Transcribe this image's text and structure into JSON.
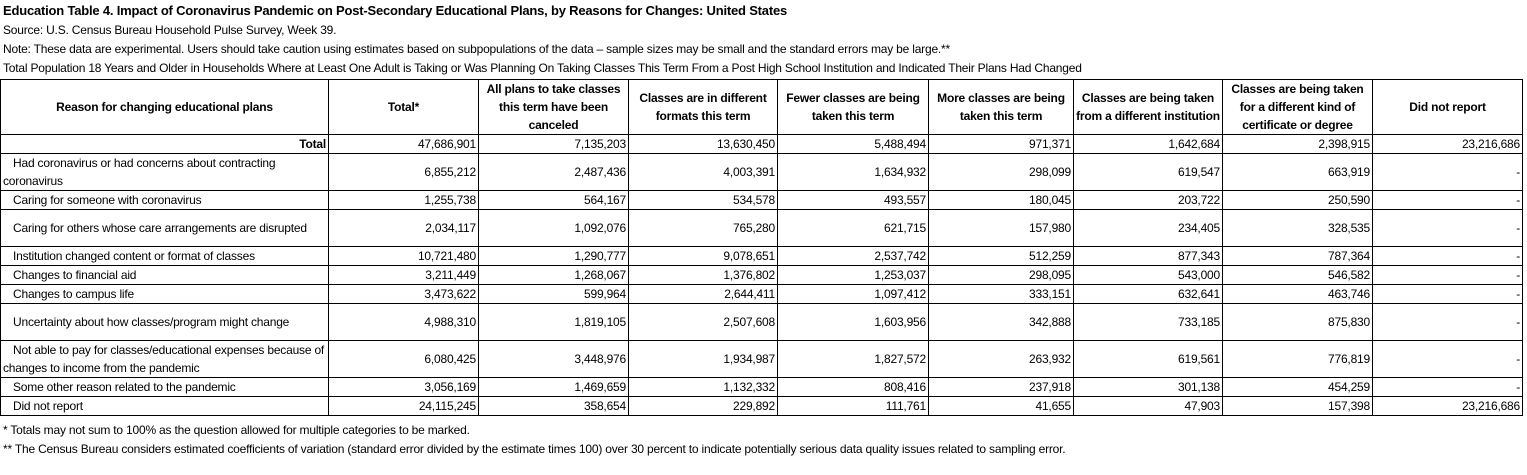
{
  "title": "Education Table 4. Impact of Coronavirus Pandemic on Post-Secondary Educational Plans, by Reasons for Changes: United States",
  "source": "Source: U.S. Census Bureau Household Pulse Survey, Week 39.",
  "note": "Note: These data are experimental. Users should take caution using estimates based on subpopulations of the data – sample sizes may be small and the standard errors may be large.**",
  "population": "Total Population 18 Years and Older in Households Where at Least One Adult is Taking or Was Planning On Taking Classes This Term From a Post High School Institution and Indicated Their Plans Had Changed",
  "table": {
    "headers": [
      "Reason for changing educational plans",
      "Total*",
      "All plans to take classes this term have been canceled",
      "Classes are in different formats this term",
      "Fewer classes are being taken this term",
      "More classes are being taken this term",
      "Classes are being taken from a different institution",
      "Classes are being taken for a different kind of certificate or degree",
      "Did not report"
    ],
    "rows": [
      {
        "label": "Total",
        "values": [
          "47,686,901",
          "7,135,203",
          "13,630,450",
          "5,488,494",
          "971,371",
          "1,642,684",
          "2,398,915",
          "23,216,686"
        ]
      },
      {
        "label": "Had coronavirus or had concerns about contracting coronavirus",
        "values": [
          "6,855,212",
          "2,487,436",
          "4,003,391",
          "1,634,932",
          "298,099",
          "619,547",
          "663,919",
          "-"
        ]
      },
      {
        "label": "Caring for someone with coronavirus",
        "values": [
          "1,255,738",
          "564,167",
          "534,578",
          "493,557",
          "180,045",
          "203,722",
          "250,590",
          "-"
        ]
      },
      {
        "label": "Caring for others whose care arrangements are disrupted",
        "values": [
          "2,034,117",
          "1,092,076",
          "765,280",
          "621,715",
          "157,980",
          "234,405",
          "328,535",
          "-"
        ]
      },
      {
        "label": "Institution changed content or format of classes",
        "values": [
          "10,721,480",
          "1,290,777",
          "9,078,651",
          "2,537,742",
          "512,259",
          "877,343",
          "787,364",
          "-"
        ]
      },
      {
        "label": "Changes to financial aid",
        "values": [
          "3,211,449",
          "1,268,067",
          "1,376,802",
          "1,253,037",
          "298,095",
          "543,000",
          "546,582",
          "-"
        ]
      },
      {
        "label": "Changes to campus life",
        "values": [
          "3,473,622",
          "599,964",
          "2,644,411",
          "1,097,412",
          "333,151",
          "632,641",
          "463,746",
          "-"
        ]
      },
      {
        "label": "Uncertainty about how classes/program might change",
        "values": [
          "4,988,310",
          "1,819,105",
          "2,507,608",
          "1,603,956",
          "342,888",
          "733,185",
          "875,830",
          "-"
        ]
      },
      {
        "label": "Not able to pay for classes/educational expenses because of changes to income from the pandemic",
        "values": [
          "6,080,425",
          "3,448,976",
          "1,934,987",
          "1,827,572",
          "263,932",
          "619,561",
          "776,819",
          "-"
        ]
      },
      {
        "label": "Some other reason related to the pandemic",
        "values": [
          "3,056,169",
          "1,469,659",
          "1,132,332",
          "808,416",
          "237,918",
          "301,138",
          "454,259",
          "-"
        ]
      },
      {
        "label": "Did not report",
        "values": [
          "24,115,245",
          "358,654",
          "229,892",
          "111,761",
          "41,655",
          "47,903",
          "157,398",
          "23,216,686"
        ]
      }
    ]
  },
  "footnotes": [
    "* Totals may not sum to 100% as the question allowed for multiple categories to be marked.",
    "** The Census Bureau considers estimated coefficients of variation (standard error divided by the estimate times 100) over 30 percent to indicate potentially serious data quality issues related to sampling error."
  ]
}
